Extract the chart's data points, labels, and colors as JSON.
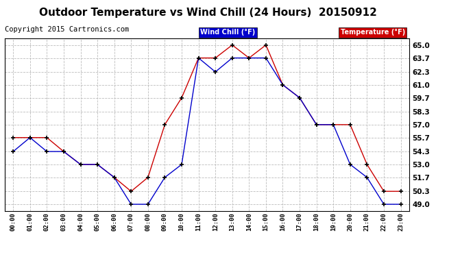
{
  "title": "Outdoor Temperature vs Wind Chill (24 Hours)  20150912",
  "copyright": "Copyright 2015 Cartronics.com",
  "legend_wind": "Wind Chill (°F)",
  "legend_temp": "Temperature (°F)",
  "x_labels": [
    "00:00",
    "01:00",
    "02:00",
    "03:00",
    "04:00",
    "05:00",
    "06:00",
    "07:00",
    "08:00",
    "09:00",
    "10:00",
    "11:00",
    "12:00",
    "13:00",
    "14:00",
    "15:00",
    "16:00",
    "17:00",
    "18:00",
    "19:00",
    "20:00",
    "21:00",
    "22:00",
    "23:00"
  ],
  "y_ticks": [
    49.0,
    50.3,
    51.7,
    53.0,
    54.3,
    55.7,
    57.0,
    58.3,
    59.7,
    61.0,
    62.3,
    63.7,
    65.0
  ],
  "ylim": [
    48.35,
    65.65
  ],
  "temp_data": [
    55.7,
    55.7,
    55.7,
    54.3,
    53.0,
    53.0,
    51.7,
    50.3,
    51.7,
    57.0,
    59.7,
    63.7,
    63.7,
    65.0,
    63.7,
    65.0,
    61.0,
    59.7,
    57.0,
    57.0,
    57.0,
    53.0,
    50.3,
    50.3
  ],
  "wind_data": [
    54.3,
    55.7,
    54.3,
    54.3,
    53.0,
    53.0,
    51.7,
    49.0,
    49.0,
    51.7,
    53.0,
    63.7,
    62.3,
    63.7,
    63.7,
    63.7,
    61.0,
    59.7,
    57.0,
    57.0,
    53.0,
    51.7,
    49.0,
    49.0
  ],
  "temp_color": "#cc0000",
  "wind_color": "#0000cc",
  "background_color": "#ffffff",
  "grid_color": "#bbbbbb",
  "title_fontsize": 11,
  "copyright_fontsize": 7.5
}
